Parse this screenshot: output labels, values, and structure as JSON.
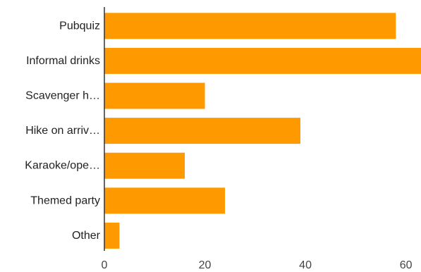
{
  "chart_data": {
    "type": "bar",
    "orientation": "horizontal",
    "categories": [
      "Pubquiz",
      "Informal drinks",
      "Scavenger h…",
      "Hike on arriv…",
      "Karaoke/ope…",
      "Themed party",
      "Other"
    ],
    "values": [
      58,
      63,
      20,
      39,
      16,
      24,
      3
    ],
    "xlim": [
      0,
      63
    ],
    "xticks": [
      0,
      20,
      40,
      60
    ],
    "title": "",
    "xlabel": "",
    "ylabel": "",
    "grid": false,
    "legend": "none",
    "colors": {
      "bar": "#ff9900",
      "axis": "#333333"
    }
  }
}
